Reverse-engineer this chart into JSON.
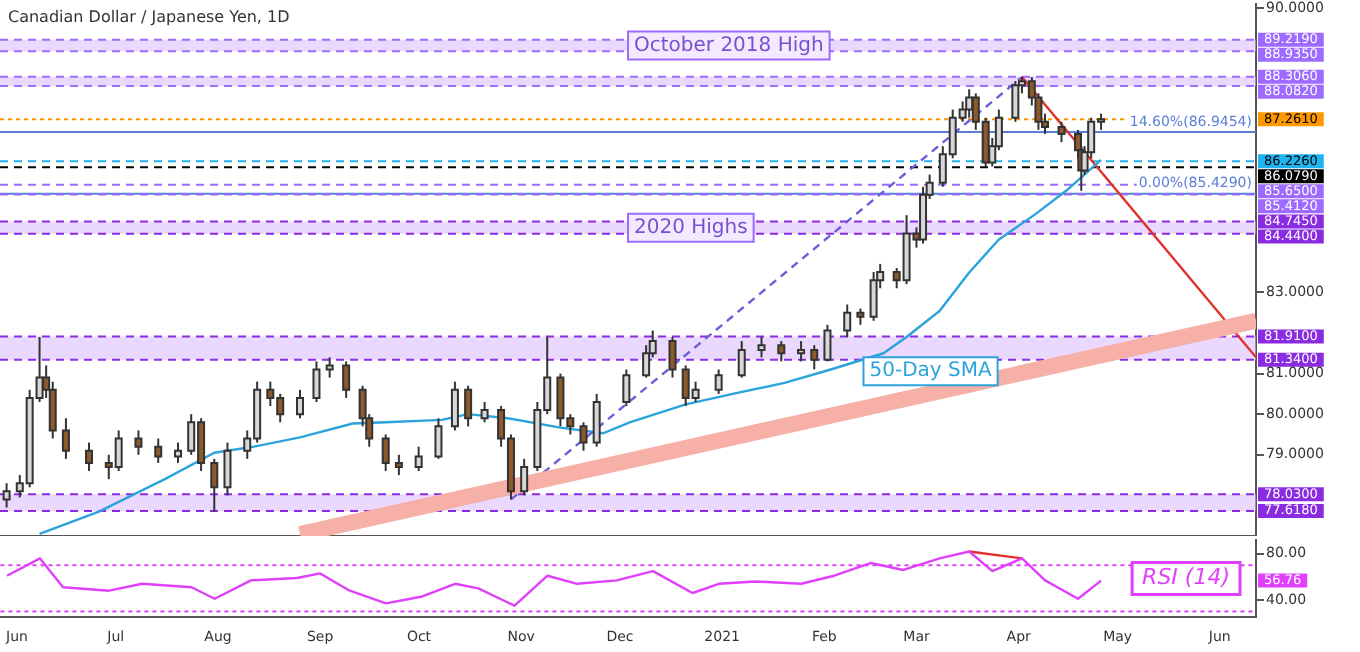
{
  "chart_data": [
    {
      "type": "candlestick",
      "title": "Canadian Dollar / Japanese Yen, 1D",
      "x": [
        "2020-05-29",
        "2020-06-02",
        "2020-06-05",
        "2020-06-08",
        "2020-06-10",
        "2020-06-12",
        "2020-06-16",
        "2020-06-23",
        "2020-06-29",
        "2020-07-02",
        "2020-07-08",
        "2020-07-14",
        "2020-07-20",
        "2020-07-24",
        "2020-07-27",
        "2020-07-31",
        "2020-08-04",
        "2020-08-10",
        "2020-08-13",
        "2020-08-17",
        "2020-08-20",
        "2020-08-26",
        "2020-08-31",
        "2020-09-04",
        "2020-09-09",
        "2020-09-14",
        "2020-09-16",
        "2020-09-21",
        "2020-09-25",
        "2020-10-01",
        "2020-10-07",
        "2020-10-12",
        "2020-10-16",
        "2020-10-21",
        "2020-10-26",
        "2020-10-29",
        "2020-11-02",
        "2020-11-06",
        "2020-11-09",
        "2020-11-13",
        "2020-11-16",
        "2020-11-20",
        "2020-11-24",
        "2020-12-03",
        "2020-12-09",
        "2020-12-11",
        "2020-12-17",
        "2020-12-21",
        "2020-12-24",
        "2020-12-31",
        "2021-01-07",
        "2021-01-13",
        "2021-01-19",
        "2021-01-25",
        "2021-01-29",
        "2021-02-02",
        "2021-02-08",
        "2021-02-12",
        "2021-02-16",
        "2021-02-18",
        "2021-02-23",
        "2021-02-26",
        "2021-03-01",
        "2021-03-03",
        "2021-03-05",
        "2021-03-09",
        "2021-03-12",
        "2021-03-15",
        "2021-03-17",
        "2021-03-19",
        "2021-03-22",
        "2021-03-24",
        "2021-03-26",
        "2021-03-31",
        "2021-04-02",
        "2021-04-05",
        "2021-04-07",
        "2021-04-09",
        "2021-04-14",
        "2021-04-19",
        "2021-04-20",
        "2021-04-21",
        "2021-04-23",
        "2021-04-26"
      ],
      "ohlc": [
        [
          77.9,
          78.3,
          77.7,
          78.1
        ],
        [
          78.1,
          78.5,
          77.95,
          78.3
        ],
        [
          78.3,
          80.6,
          78.2,
          80.4
        ],
        [
          80.4,
          81.9,
          80.3,
          80.9
        ],
        [
          80.9,
          81.2,
          80.4,
          80.6
        ],
        [
          80.6,
          80.8,
          79.4,
          79.6
        ],
        [
          79.6,
          79.9,
          78.9,
          79.1
        ],
        [
          79.1,
          79.3,
          78.6,
          78.8
        ],
        [
          78.8,
          79.0,
          78.4,
          78.7
        ],
        [
          78.7,
          79.6,
          78.6,
          79.4
        ],
        [
          79.4,
          79.6,
          79.0,
          79.2
        ],
        [
          79.2,
          79.4,
          78.8,
          78.96
        ],
        [
          78.96,
          79.3,
          78.8,
          79.1
        ],
        [
          79.1,
          80.0,
          79.0,
          79.8
        ],
        [
          79.8,
          79.9,
          78.6,
          78.8
        ],
        [
          78.8,
          78.9,
          77.6,
          78.2
        ],
        [
          78.2,
          79.3,
          78.0,
          79.1
        ],
        [
          79.1,
          79.6,
          78.9,
          79.4
        ],
        [
          79.4,
          80.8,
          79.3,
          80.6
        ],
        [
          80.6,
          80.8,
          80.2,
          80.4
        ],
        [
          80.4,
          80.5,
          79.8,
          80.0
        ],
        [
          80.0,
          80.6,
          79.9,
          80.4
        ],
        [
          80.4,
          81.3,
          80.3,
          81.1
        ],
        [
          81.1,
          81.4,
          80.9,
          81.2
        ],
        [
          81.2,
          81.3,
          80.4,
          80.6
        ],
        [
          80.6,
          80.7,
          79.7,
          79.9
        ],
        [
          79.9,
          80.0,
          79.2,
          79.4
        ],
        [
          79.4,
          79.5,
          78.6,
          78.8
        ],
        [
          78.8,
          79.0,
          78.5,
          78.7
        ],
        [
          78.7,
          79.2,
          78.6,
          78.96
        ],
        [
          78.96,
          79.9,
          78.9,
          79.7
        ],
        [
          79.7,
          80.8,
          79.6,
          80.6
        ],
        [
          80.6,
          80.7,
          79.7,
          79.9
        ],
        [
          79.9,
          80.3,
          79.8,
          80.1
        ],
        [
          80.1,
          80.2,
          79.2,
          79.4
        ],
        [
          79.4,
          79.5,
          77.9,
          78.1
        ],
        [
          78.1,
          78.9,
          78.0,
          78.7
        ],
        [
          78.7,
          80.3,
          78.6,
          80.1
        ],
        [
          80.1,
          81.9,
          80.0,
          80.9
        ],
        [
          80.9,
          81.0,
          79.7,
          79.9
        ],
        [
          79.9,
          80.0,
          79.5,
          79.7
        ],
        [
          79.7,
          79.8,
          79.1,
          79.3
        ],
        [
          79.3,
          80.5,
          79.2,
          80.3
        ],
        [
          80.3,
          81.1,
          80.2,
          80.96
        ],
        [
          80.96,
          81.7,
          80.9,
          81.5
        ],
        [
          81.5,
          82.06,
          81.4,
          81.8
        ],
        [
          81.8,
          81.9,
          80.9,
          81.1
        ],
        [
          81.1,
          81.2,
          80.2,
          80.4
        ],
        [
          80.4,
          80.8,
          80.3,
          80.6
        ],
        [
          80.6,
          81.1,
          80.5,
          80.96
        ],
        [
          80.96,
          81.8,
          80.9,
          81.58
        ],
        [
          81.58,
          81.9,
          81.4,
          81.7
        ],
        [
          81.7,
          81.8,
          81.3,
          81.5
        ],
        [
          81.5,
          81.8,
          81.3,
          81.58
        ],
        [
          81.58,
          81.7,
          81.1,
          81.34
        ],
        [
          81.34,
          82.2,
          81.3,
          82.06
        ],
        [
          82.06,
          82.7,
          81.9,
          82.5
        ],
        [
          82.5,
          82.6,
          82.2,
          82.4
        ],
        [
          82.4,
          83.5,
          82.3,
          83.3
        ],
        [
          83.3,
          83.7,
          83.1,
          83.5
        ],
        [
          83.5,
          83.6,
          83.1,
          83.3
        ],
        [
          83.3,
          84.9,
          83.2,
          84.45
        ],
        [
          84.45,
          84.6,
          84.1,
          84.3
        ],
        [
          84.3,
          85.6,
          84.2,
          85.4
        ],
        [
          85.4,
          85.9,
          85.3,
          85.7
        ],
        [
          85.7,
          86.6,
          85.6,
          86.4
        ],
        [
          86.4,
          87.5,
          86.3,
          87.3
        ],
        [
          87.3,
          87.7,
          87.2,
          87.5
        ],
        [
          87.5,
          88.0,
          87.3,
          87.8
        ],
        [
          87.8,
          87.9,
          87.0,
          87.2
        ],
        [
          87.2,
          87.3,
          86.1,
          86.2
        ],
        [
          86.2,
          86.8,
          86.1,
          86.6
        ],
        [
          86.6,
          87.5,
          86.5,
          87.3
        ],
        [
          87.3,
          88.2,
          87.2,
          88.1
        ],
        [
          88.1,
          88.306,
          87.9,
          88.2
        ],
        [
          88.2,
          88.3,
          87.6,
          87.8
        ],
        [
          87.8,
          87.9,
          87.0,
          87.2
        ],
        [
          87.2,
          87.4,
          86.9,
          87.07
        ],
        [
          87.07,
          87.2,
          86.7,
          86.9
        ],
        [
          86.9,
          87.0,
          86.3,
          86.5
        ],
        [
          86.5,
          86.6,
          85.5,
          86.0
        ],
        [
          86.0,
          86.6,
          85.9,
          86.45
        ],
        [
          86.45,
          87.3,
          86.3,
          87.2
        ],
        [
          87.2,
          87.4,
          87.0,
          87.26
        ]
      ],
      "series": [
        {
          "type": "line",
          "color": "#f7b0a8",
          "x": [
            "2020-08-26",
            "2021-06-12"
          ],
          "values": [
            77.05,
            82.3
          ]
        },
        {
          "type": "line",
          "color": "#6a5fd8",
          "line_style": "dashed",
          "x": [
            "2020-10-29",
            "2021-04-02"
          ],
          "values": [
            77.9,
            88.3
          ]
        },
        {
          "type": "line",
          "name": "50-Day SMA",
          "color": "#2ba3dc",
          "x": [
            "2020-06-08",
            "2020-06-26",
            "2020-07-16",
            "2020-07-31",
            "2020-08-12",
            "2020-08-26",
            "2020-09-11",
            "2020-09-21",
            "2020-10-08",
            "2020-10-16",
            "2020-10-28",
            "2020-11-13",
            "2020-11-26",
            "2020-12-04",
            "2020-12-21",
            "2021-01-06",
            "2021-01-20",
            "2021-02-03",
            "2021-02-19",
            "2021-02-26",
            "2021-03-08",
            "2021-03-17",
            "2021-03-26",
            "2021-04-06",
            "2021-04-16",
            "2021-04-26"
          ],
          "values": [
            77.05,
            77.6,
            78.4,
            79.05,
            79.2,
            79.43,
            79.77,
            79.8,
            79.86,
            80.0,
            79.9,
            79.67,
            79.53,
            79.8,
            80.24,
            80.53,
            80.77,
            81.1,
            81.5,
            81.9,
            82.54,
            83.49,
            84.3,
            84.92,
            85.54,
            86.26
          ]
        },
        {
          "type": "line",
          "color": "#e0312b",
          "x": [
            "2021-04-02",
            "2021-06-12"
          ],
          "values": [
            88.3,
            81.4
          ]
        }
      ],
      "xlim": [
        "2020-05-27",
        "2021-06-12"
      ],
      "ylim": [
        77.0,
        90.1
      ],
      "yticks": [
        {
          "value": 79,
          "label": "79.0000"
        },
        {
          "value": 80,
          "label": "80.0000"
        },
        {
          "value": 81,
          "label": "81.0000"
        },
        {
          "value": 83,
          "label": "83.0000"
        },
        {
          "value": 90,
          "label": "90.0000"
        }
      ],
      "tick_labels": "y",
      "bands": [
        {
          "axis": "y",
          "from": 88.935,
          "to": 89.219,
          "label": "October 2018 High",
          "color": "#d9b8ff"
        },
        {
          "axis": "y",
          "from": 88.082,
          "to": 88.306,
          "color": "#d9b8ff"
        },
        {
          "axis": "y",
          "from": 84.44,
          "to": 84.745,
          "label": "2020 Highs",
          "color": "#d9b8ff"
        },
        {
          "axis": "y",
          "from": 81.34,
          "to": 81.91,
          "color": "#d9b8ff"
        },
        {
          "axis": "y",
          "from": 77.618,
          "to": 78.03,
          "color": "#d9b8ff"
        }
      ],
      "ref_lines": [
        {
          "axis": "y",
          "value": 89.219,
          "label": "89.2190",
          "color": "#9d6bff",
          "line_style": "dashed"
        },
        {
          "axis": "y",
          "value": 88.935,
          "label": "88.9350",
          "color": "#9d6bff",
          "line_style": "dashed"
        },
        {
          "axis": "y",
          "value": 88.306,
          "label": "88.3060",
          "color": "#9d6bff",
          "line_style": "dashed"
        },
        {
          "axis": "y",
          "value": 88.082,
          "label": "88.0820",
          "color": "#9d6bff",
          "line_style": "dashed"
        },
        {
          "axis": "y",
          "value": 87.261,
          "label": "87.2610",
          "color": "#ff9800",
          "line_style": "dotted"
        },
        {
          "axis": "y",
          "value": 86.9454,
          "label": "14.60%(86.9454)",
          "color": "#5b7fd6",
          "line_style": "solid"
        },
        {
          "axis": "y",
          "value": 86.226,
          "label": "86.2260",
          "color": "#1eb4f0",
          "line_style": "dashed"
        },
        {
          "axis": "y",
          "value": 86.079,
          "label": "86.0790",
          "color": "#000000",
          "line_style": "dashed"
        },
        {
          "axis": "y",
          "value": 85.65,
          "label": "85.6500",
          "color": "#9d6bff",
          "line_style": "dashed"
        },
        {
          "axis": "y",
          "value": 85.429,
          "label": "0.00%(85.4290)",
          "color": "#5b7fd6",
          "line_style": "solid"
        },
        {
          "axis": "y",
          "value": 85.412,
          "label": "85.4120",
          "color": "#9d6bff",
          "line_style": "dashed"
        },
        {
          "axis": "y",
          "value": 84.745,
          "label": "84.7450",
          "color": "#8a2be2",
          "line_style": "dashed"
        },
        {
          "axis": "y",
          "value": 84.44,
          "label": "84.4400",
          "color": "#8a2be2",
          "line_style": "dashed"
        },
        {
          "axis": "y",
          "value": 81.91,
          "label": "81.9100",
          "color": "#8a2be2",
          "line_style": "dashed"
        },
        {
          "axis": "y",
          "value": 81.34,
          "label": "81.3400",
          "color": "#8a2be2",
          "line_style": "dashed"
        },
        {
          "axis": "y",
          "value": 78.03,
          "label": "78.0300",
          "color": "#8a2be2",
          "line_style": "dashed"
        },
        {
          "axis": "y",
          "value": 77.618,
          "label": "77.6180",
          "color": "#8a2be2",
          "line_style": "dashed"
        }
      ]
    },
    {
      "type": "line",
      "title": "RSI (14)",
      "series": [
        {
          "color": "#e040fb",
          "x": [
            "2020-05-29",
            "2020-06-08",
            "2020-06-15",
            "2020-06-29",
            "2020-07-09",
            "2020-07-24",
            "2020-07-31",
            "2020-08-11",
            "2020-08-25",
            "2020-09-01",
            "2020-09-10",
            "2020-09-21",
            "2020-10-02",
            "2020-10-12",
            "2020-10-19",
            "2020-10-30",
            "2020-11-09",
            "2020-11-18",
            "2020-11-30",
            "2020-12-11",
            "2020-12-23",
            "2020-12-31",
            "2021-01-11",
            "2021-01-25",
            "2021-02-04",
            "2021-02-15",
            "2021-02-25",
            "2021-03-08",
            "2021-03-17",
            "2021-03-24",
            "2021-04-02",
            "2021-04-09",
            "2021-04-19",
            "2021-04-26"
          ],
          "values": [
            61,
            76,
            51,
            48,
            54,
            51,
            41,
            57,
            59,
            63,
            48,
            37,
            43,
            54,
            50,
            35,
            61,
            54,
            57,
            65,
            46,
            54,
            56,
            54,
            61,
            72,
            66,
            76,
            82,
            65,
            76,
            57,
            41,
            56.76
          ]
        },
        {
          "color": "#e0312b",
          "x": [
            "2021-03-17",
            "2021-04-02"
          ],
          "values": [
            82,
            76
          ]
        }
      ],
      "xlim": [
        "2020-05-27",
        "2021-06-12"
      ],
      "xticks": [
        {
          "value": "2020-06-01",
          "label": "Jun"
        },
        {
          "value": "2020-07-01",
          "label": "Jul"
        },
        {
          "value": "2020-08-01",
          "label": "Aug"
        },
        {
          "value": "2020-09-01",
          "label": "Sep"
        },
        {
          "value": "2020-10-01",
          "label": "Oct"
        },
        {
          "value": "2020-11-01",
          "label": "Nov"
        },
        {
          "value": "2020-12-01",
          "label": "Dec"
        },
        {
          "value": "2021-01-01",
          "label": "2021"
        },
        {
          "value": "2021-02-01",
          "label": "Feb"
        },
        {
          "value": "2021-03-01",
          "label": "Mar"
        },
        {
          "value": "2021-04-01",
          "label": "Apr"
        },
        {
          "value": "2021-05-01",
          "label": "May"
        },
        {
          "value": "2021-06-01",
          "label": "Jun"
        }
      ],
      "ylim": [
        25,
        92
      ],
      "yticks": [
        {
          "value": 80,
          "label": "80.00"
        },
        {
          "value": 40,
          "label": "40.00"
        }
      ],
      "ref_lines": [
        {
          "axis": "y",
          "value": 70,
          "color": "#e040fb",
          "line_style": "dotted"
        },
        {
          "axis": "y",
          "value": 30,
          "color": "#e040fb",
          "line_style": "dotted"
        }
      ],
      "annotations": [
        "56.76"
      ]
    }
  ]
}
